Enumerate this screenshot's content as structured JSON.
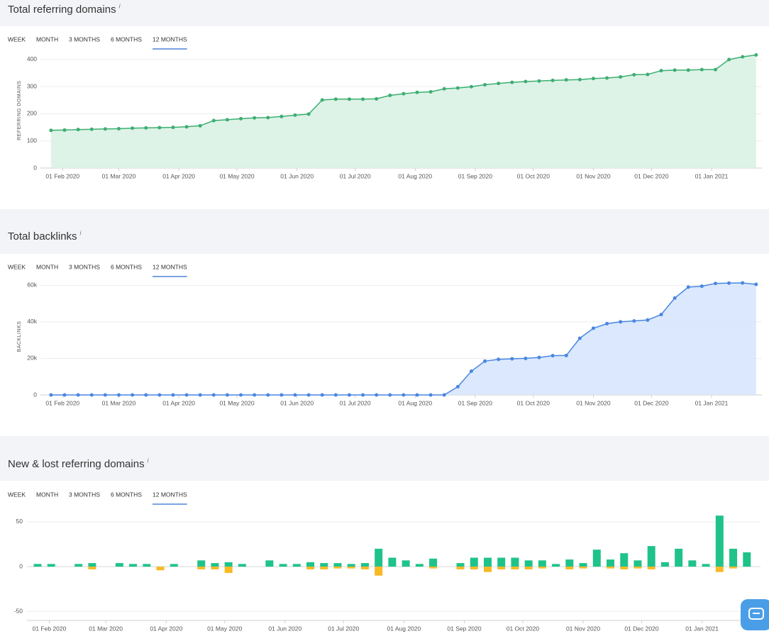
{
  "chart_data": [
    {
      "type": "line",
      "title": "Total referring domains",
      "info": "i",
      "tabs": [
        "WEEK",
        "MONTH",
        "3 MONTHS",
        "6 MONTHS",
        "12 MONTHS"
      ],
      "active_tab": 4,
      "ylabel": "REFERRING DOMAINS",
      "color": "#3dae72",
      "area_color": "#d9f2e4",
      "x": [
        "2020-01-26",
        "2020-02-02",
        "2020-02-09",
        "2020-02-16",
        "2020-02-23",
        "2020-03-01",
        "2020-03-08",
        "2020-03-15",
        "2020-03-22",
        "2020-03-29",
        "2020-04-05",
        "2020-04-12",
        "2020-04-19",
        "2020-04-26",
        "2020-05-03",
        "2020-05-10",
        "2020-05-17",
        "2020-05-24",
        "2020-05-31",
        "2020-06-07",
        "2020-06-14",
        "2020-06-21",
        "2020-06-28",
        "2020-07-05",
        "2020-07-12",
        "2020-07-19",
        "2020-07-26",
        "2020-08-02",
        "2020-08-09",
        "2020-08-16",
        "2020-08-23",
        "2020-08-30",
        "2020-09-06",
        "2020-09-13",
        "2020-09-20",
        "2020-09-27",
        "2020-10-04",
        "2020-10-11",
        "2020-10-18",
        "2020-10-25",
        "2020-11-01",
        "2020-11-08",
        "2020-11-15",
        "2020-11-22",
        "2020-11-29",
        "2020-12-06",
        "2020-12-13",
        "2020-12-20",
        "2020-12-27",
        "2021-01-03",
        "2021-01-10",
        "2021-01-17",
        "2021-01-24"
      ],
      "values": [
        139,
        140,
        142,
        143,
        144,
        145,
        147,
        148,
        149,
        150,
        152,
        156,
        175,
        178,
        182,
        185,
        186,
        190,
        195,
        199,
        251,
        254,
        254,
        254,
        255,
        268,
        274,
        279,
        281,
        292,
        295,
        300,
        307,
        312,
        316,
        319,
        321,
        323,
        325,
        326,
        330,
        332,
        336,
        344,
        345,
        359,
        361,
        361,
        363,
        363,
        400,
        410,
        417
      ],
      "xlim": [
        "2020-01-22",
        "2021-01-27"
      ],
      "xticks": [
        {
          "value": "2020-02-01",
          "label": "01 Feb 2020"
        },
        {
          "value": "2020-03-01",
          "label": "01 Mar 2020"
        },
        {
          "value": "2020-04-01",
          "label": "01 Apr 2020"
        },
        {
          "value": "2020-05-01",
          "label": "01 May 2020"
        },
        {
          "value": "2020-06-01",
          "label": "01 Jun 2020"
        },
        {
          "value": "2020-07-01",
          "label": "01 Jul 2020"
        },
        {
          "value": "2020-08-01",
          "label": "01 Aug 2020"
        },
        {
          "value": "2020-09-01",
          "label": "01 Sep 2020"
        },
        {
          "value": "2020-10-01",
          "label": "01 Oct 2020"
        },
        {
          "value": "2020-11-01",
          "label": "01 Nov 2020"
        },
        {
          "value": "2020-12-01",
          "label": "01 Dec 2020"
        },
        {
          "value": "2021-01-01",
          "label": "01 Jan 2021"
        }
      ],
      "ylim": [
        0,
        425
      ],
      "yticks": [
        0,
        100,
        200,
        300,
        400
      ],
      "grid": true
    },
    {
      "type": "line",
      "title": "Total backlinks",
      "info": "i",
      "tabs": [
        "WEEK",
        "MONTH",
        "3 MONTHS",
        "6 MONTHS",
        "12 MONTHS"
      ],
      "active_tab": 4,
      "ylabel": "BACKLINKS",
      "color": "#4a86e0",
      "area_color": "#d7e6fd",
      "x": [
        "2020-01-26",
        "2020-02-02",
        "2020-02-09",
        "2020-02-16",
        "2020-02-23",
        "2020-03-01",
        "2020-03-08",
        "2020-03-15",
        "2020-03-22",
        "2020-03-29",
        "2020-04-05",
        "2020-04-12",
        "2020-04-19",
        "2020-04-26",
        "2020-05-03",
        "2020-05-10",
        "2020-05-17",
        "2020-05-24",
        "2020-05-31",
        "2020-06-07",
        "2020-06-14",
        "2020-06-21",
        "2020-06-28",
        "2020-07-05",
        "2020-07-12",
        "2020-07-19",
        "2020-07-26",
        "2020-08-02",
        "2020-08-09",
        "2020-08-16",
        "2020-08-23",
        "2020-08-30",
        "2020-09-06",
        "2020-09-13",
        "2020-09-20",
        "2020-09-27",
        "2020-10-04",
        "2020-10-11",
        "2020-10-18",
        "2020-10-25",
        "2020-11-01",
        "2020-11-08",
        "2020-11-15",
        "2020-11-22",
        "2020-11-29",
        "2020-12-06",
        "2020-12-13",
        "2020-12-20",
        "2020-12-27",
        "2021-01-03",
        "2021-01-10",
        "2021-01-17",
        "2021-01-24"
      ],
      "values": [
        0,
        0,
        0,
        0,
        0,
        0,
        0,
        0,
        0,
        0,
        0,
        0,
        0,
        0,
        0,
        0,
        0,
        0,
        0,
        0,
        0,
        0,
        0,
        0,
        0,
        0,
        0,
        0,
        0,
        0,
        4500,
        13000,
        18500,
        19500,
        19800,
        20000,
        20500,
        21500,
        21600,
        31000,
        36500,
        39000,
        40000,
        40500,
        41000,
        44000,
        53000,
        59000,
        59500,
        61000,
        61200,
        61300,
        60500
      ],
      "xlim": [
        "2020-01-22",
        "2021-01-27"
      ],
      "xticks": [
        {
          "value": "2020-02-01",
          "label": "01 Feb 2020"
        },
        {
          "value": "2020-03-01",
          "label": "01 Mar 2020"
        },
        {
          "value": "2020-04-01",
          "label": "01 Apr 2020"
        },
        {
          "value": "2020-05-01",
          "label": "01 May 2020"
        },
        {
          "value": "2020-06-01",
          "label": "01 Jun 2020"
        },
        {
          "value": "2020-07-01",
          "label": "01 Jul 2020"
        },
        {
          "value": "2020-08-01",
          "label": "01 Aug 2020"
        },
        {
          "value": "2020-09-01",
          "label": "01 Sep 2020"
        },
        {
          "value": "2020-10-01",
          "label": "01 Oct 2020"
        },
        {
          "value": "2020-11-01",
          "label": "01 Nov 2020"
        },
        {
          "value": "2020-12-01",
          "label": "01 Dec 2020"
        },
        {
          "value": "2021-01-01",
          "label": "01 Jan 2021"
        }
      ],
      "ylim": [
        0,
        64000
      ],
      "yticks": [
        0,
        {
          "value": 20000,
          "label": "20k"
        },
        {
          "value": 40000,
          "label": "40k"
        },
        {
          "value": 60000,
          "label": "60k"
        }
      ],
      "grid": true
    },
    {
      "type": "bar",
      "title": "New & lost referring domains",
      "info": "i",
      "tabs": [
        "WEEK",
        "MONTH",
        "3 MONTHS",
        "6 MONTHS",
        "12 MONTHS"
      ],
      "active_tab": 4,
      "x": [
        "2020-01-26",
        "2020-02-02",
        "2020-02-09",
        "2020-02-16",
        "2020-02-23",
        "2020-03-01",
        "2020-03-08",
        "2020-03-15",
        "2020-03-22",
        "2020-03-29",
        "2020-04-05",
        "2020-04-12",
        "2020-04-19",
        "2020-04-26",
        "2020-05-03",
        "2020-05-10",
        "2020-05-17",
        "2020-05-24",
        "2020-05-31",
        "2020-06-07",
        "2020-06-14",
        "2020-06-21",
        "2020-06-28",
        "2020-07-05",
        "2020-07-12",
        "2020-07-19",
        "2020-07-26",
        "2020-08-02",
        "2020-08-09",
        "2020-08-16",
        "2020-08-23",
        "2020-08-30",
        "2020-09-06",
        "2020-09-13",
        "2020-09-20",
        "2020-09-27",
        "2020-10-04",
        "2020-10-11",
        "2020-10-18",
        "2020-10-25",
        "2020-11-01",
        "2020-11-08",
        "2020-11-15",
        "2020-11-22",
        "2020-11-29",
        "2020-12-06",
        "2020-12-13",
        "2020-12-20",
        "2020-12-27",
        "2021-01-03",
        "2021-01-10",
        "2021-01-17",
        "2021-01-24"
      ],
      "series": [
        {
          "color": "#1fc38a",
          "values": [
            3,
            3,
            0,
            3,
            4,
            0,
            4,
            3,
            3,
            0,
            3,
            0,
            7,
            4,
            5,
            3,
            0,
            7,
            3,
            3,
            5,
            4,
            4,
            3,
            4,
            20,
            10,
            7,
            3,
            9,
            0,
            4,
            10,
            10,
            10,
            10,
            7,
            7,
            3,
            8,
            4,
            19,
            8,
            15,
            7,
            23,
            5,
            20,
            7,
            3,
            57,
            20,
            16
          ]
        },
        {
          "color": "#f7b924",
          "values": [
            0,
            0,
            0,
            0,
            -3,
            0,
            0,
            0,
            0,
            -4,
            0,
            0,
            -3,
            -3,
            -7,
            0,
            0,
            0,
            0,
            0,
            -3,
            -3,
            -2,
            -2,
            -3,
            -10,
            0,
            0,
            0,
            -2,
            0,
            -3,
            -3,
            -6,
            -3,
            -3,
            -3,
            -2,
            0,
            -3,
            -2,
            0,
            -2,
            -3,
            -2,
            -3,
            0,
            0,
            0,
            0,
            -6,
            -2,
            0
          ]
        }
      ],
      "xlim": [
        "2020-01-22",
        "2021-01-31"
      ],
      "xticks": [
        {
          "value": "2020-02-01",
          "label": "01 Feb 2020"
        },
        {
          "value": "2020-03-01",
          "label": "01 Mar 2020"
        },
        {
          "value": "2020-04-01",
          "label": "01 Apr 2020"
        },
        {
          "value": "2020-05-01",
          "label": "01 May 2020"
        },
        {
          "value": "2020-06-01",
          "label": "01 Jun 2020"
        },
        {
          "value": "2020-07-01",
          "label": "01 Jul 2020"
        },
        {
          "value": "2020-08-01",
          "label": "01 Aug 2020"
        },
        {
          "value": "2020-09-01",
          "label": "01 Sep 2020"
        },
        {
          "value": "2020-10-01",
          "label": "01 Oct 2020"
        },
        {
          "value": "2020-11-01",
          "label": "01 Nov 2020"
        },
        {
          "value": "2020-12-01",
          "label": "01 Dec 2020"
        },
        {
          "value": "2021-01-01",
          "label": "01 Jan 2021"
        }
      ],
      "ylim": [
        -60,
        65
      ],
      "yticks": [
        -50,
        0,
        50
      ],
      "grid": true
    }
  ]
}
